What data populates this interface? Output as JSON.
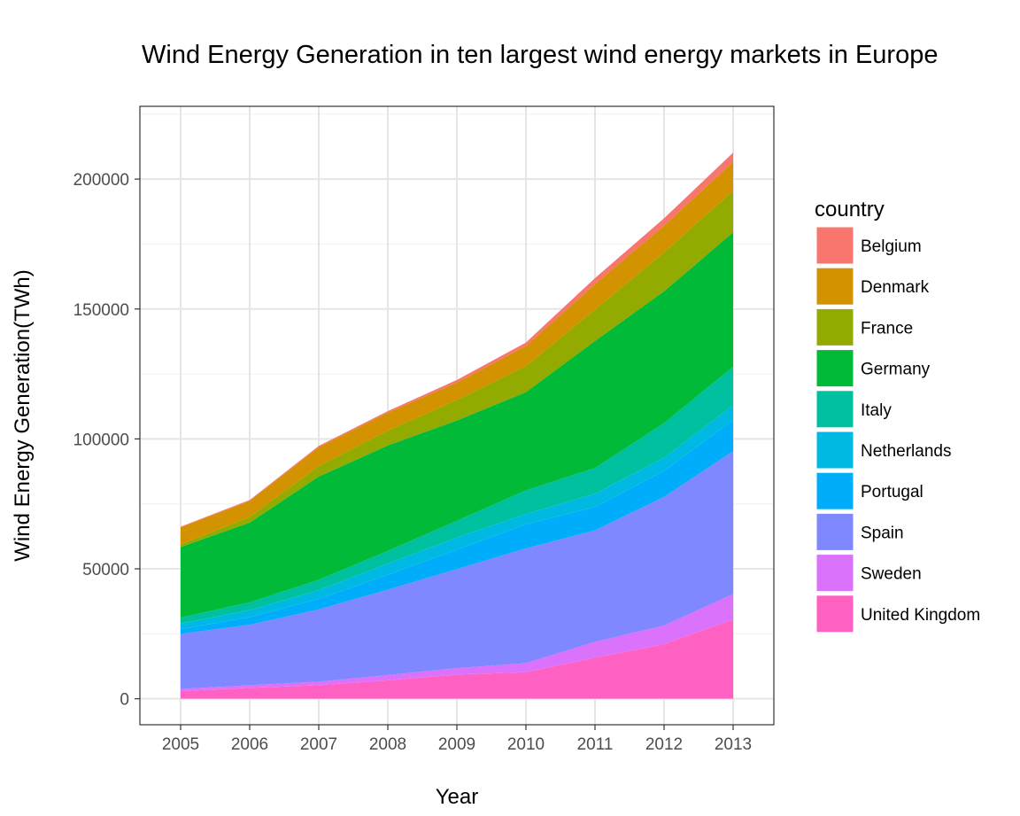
{
  "chart_data": {
    "type": "area",
    "stacked": true,
    "title": "Wind Energy Generation in ten largest wind energy markets in Europe",
    "xlabel": "Year",
    "ylabel": "Wind Energy Generation(TWh)",
    "x": [
      2005,
      2006,
      2007,
      2008,
      2009,
      2010,
      2011,
      2012,
      2013
    ],
    "x_tick_labels": [
      "2005",
      "2006",
      "2007",
      "2008",
      "2009",
      "2010",
      "2011",
      "2012",
      "2013"
    ],
    "y_ticks": [
      0,
      50000,
      100000,
      150000,
      200000
    ],
    "y_tick_labels": [
      "0",
      "50000",
      "100000",
      "150000",
      "200000"
    ],
    "ylim": [
      -10000,
      228000
    ],
    "grid": true,
    "legend": {
      "title": "country",
      "position": "right"
    },
    "series": [
      {
        "name": "Belgium",
        "color": "#F8766D",
        "values": [
          200,
          400,
          500,
          600,
          1000,
          1300,
          2300,
          2800,
          3600
        ]
      },
      {
        "name": "Denmark",
        "color": "#D39200",
        "values": [
          6600,
          6100,
          7200,
          6900,
          6700,
          7800,
          9800,
          10300,
          11100
        ]
      },
      {
        "name": "France",
        "color": "#93AA00",
        "values": [
          1000,
          2200,
          4100,
          5700,
          7900,
          10000,
          12100,
          15000,
          16000
        ]
      },
      {
        "name": "Germany",
        "color": "#00BA38",
        "values": [
          27200,
          30700,
          39700,
          40600,
          38600,
          37800,
          48900,
          50700,
          51700
        ]
      },
      {
        "name": "Italy",
        "color": "#00C19F",
        "values": [
          2300,
          3000,
          4000,
          4900,
          6500,
          9100,
          9900,
          13400,
          14900
        ]
      },
      {
        "name": "Netherlands",
        "color": "#00B9E3",
        "values": [
          2100,
          2700,
          3400,
          4300,
          4600,
          4000,
          5100,
          5000,
          5600
        ]
      },
      {
        "name": "Portugal",
        "color": "#00ADFA",
        "values": [
          1800,
          2900,
          4000,
          5700,
          7500,
          9200,
          9000,
          10000,
          12000
        ]
      },
      {
        "name": "Spain",
        "color": "#8088FF",
        "values": [
          21200,
          23300,
          27800,
          32900,
          38100,
          44200,
          42900,
          49500,
          55000
        ]
      },
      {
        "name": "Sweden",
        "color": "#DB72FB",
        "values": [
          900,
          1000,
          1400,
          2000,
          2500,
          3500,
          6100,
          7200,
          9800
        ]
      },
      {
        "name": "United Kingdom",
        "color": "#FF61C3",
        "values": [
          2900,
          4200,
          5200,
          7100,
          9300,
          10200,
          15800,
          21000,
          30500
        ]
      }
    ]
  }
}
